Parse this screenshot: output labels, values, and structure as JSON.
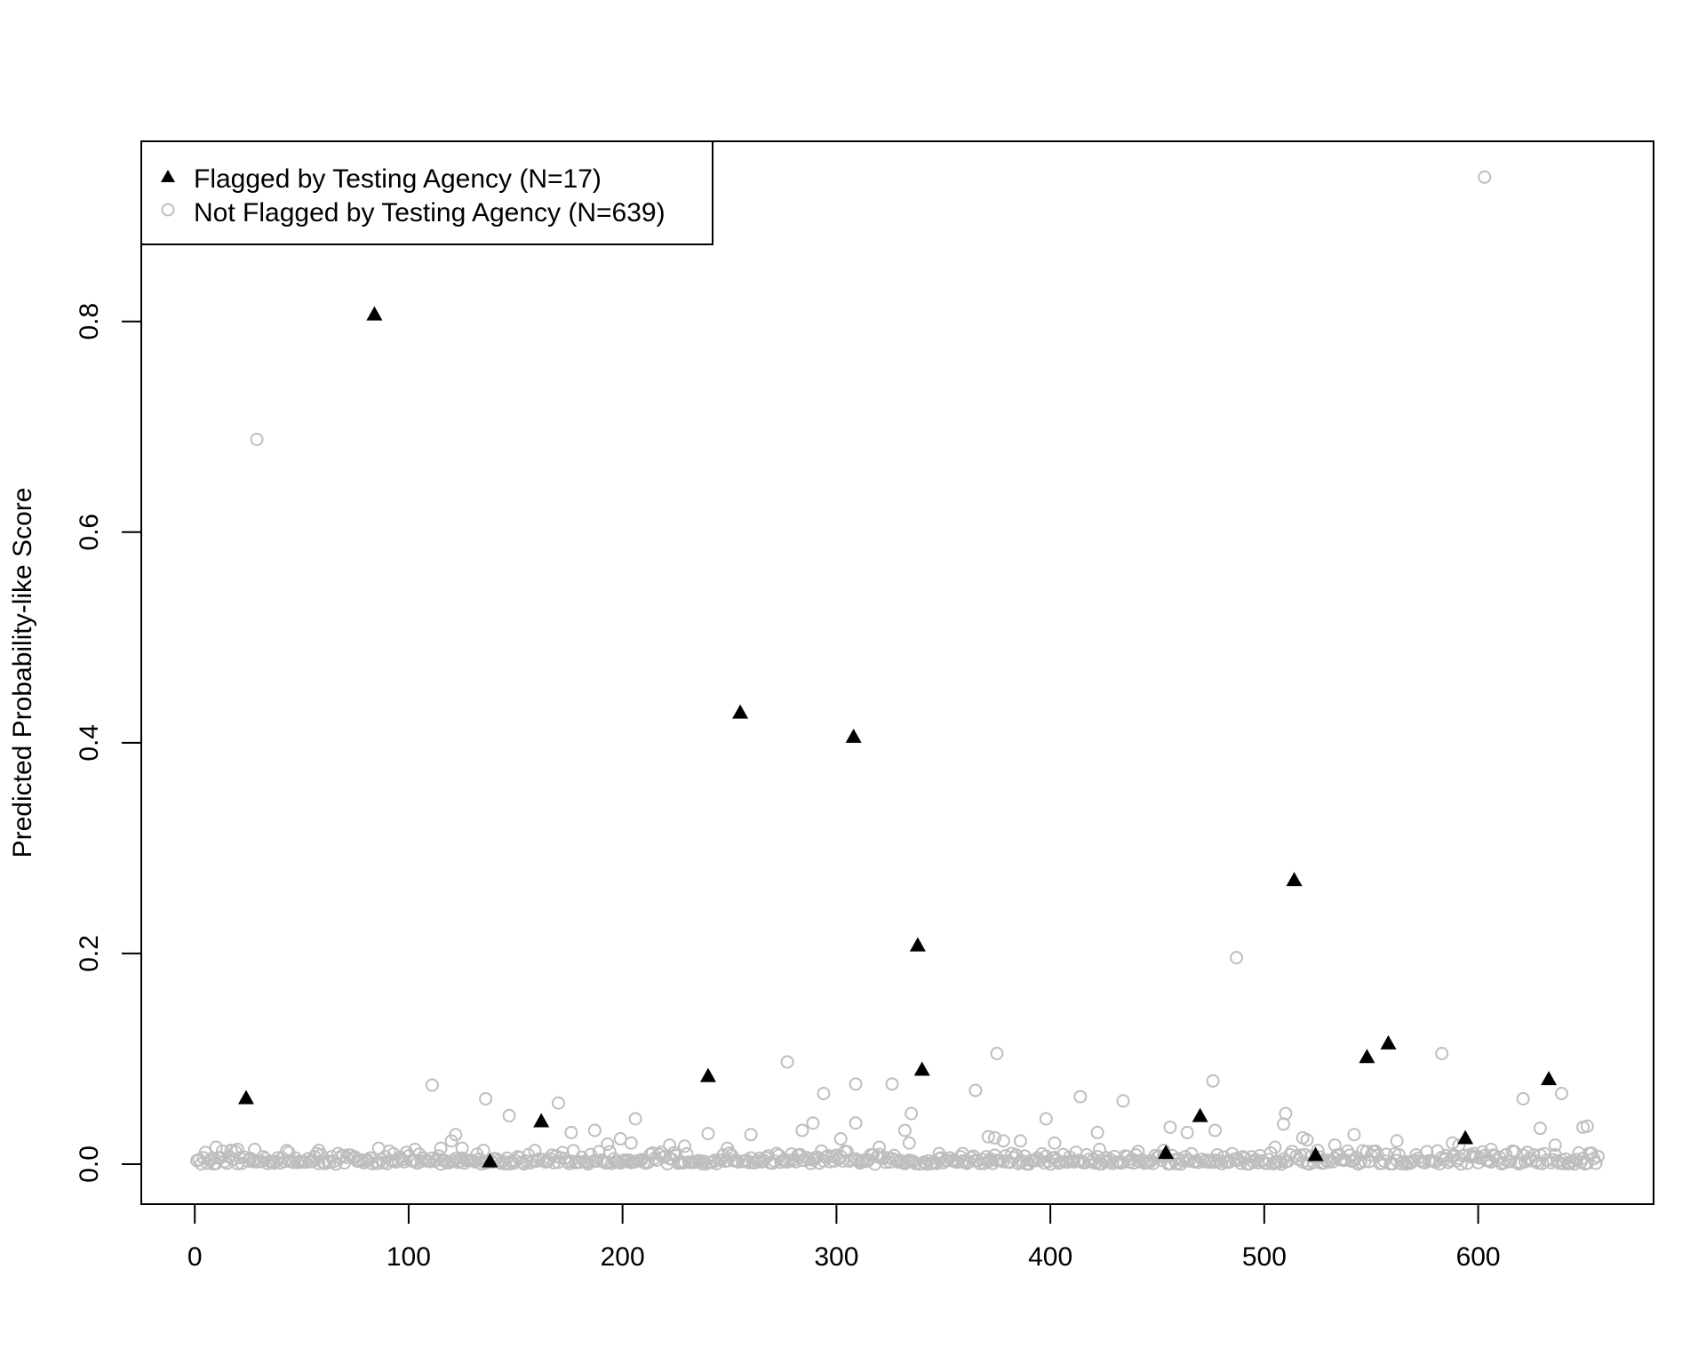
{
  "chart_data": {
    "type": "scatter",
    "title": "",
    "xlabel": "",
    "ylabel": "Predicted Probability-like Score",
    "xlim": [
      -25,
      682
    ],
    "ylim": [
      -0.038,
      0.971
    ],
    "x_ticks": [
      0,
      100,
      200,
      300,
      400,
      500,
      600
    ],
    "y_ticks": [
      0.0,
      0.2,
      0.4,
      0.6,
      0.8
    ],
    "grid": false,
    "legend_position": "top-left",
    "series": [
      {
        "name": "Flagged by Testing Agency (N=17)",
        "marker": "filled-triangle",
        "color": "#000000",
        "points": [
          [
            24,
            0.062
          ],
          [
            84,
            0.806
          ],
          [
            138,
            0.002
          ],
          [
            162,
            0.04
          ],
          [
            240,
            0.083
          ],
          [
            255,
            0.428
          ],
          [
            308,
            0.405
          ],
          [
            338,
            0.207
          ],
          [
            340,
            0.089
          ],
          [
            454,
            0.01
          ],
          [
            470,
            0.045
          ],
          [
            514,
            0.269
          ],
          [
            524,
            0.008
          ],
          [
            548,
            0.101
          ],
          [
            558,
            0.114
          ],
          [
            594,
            0.024
          ],
          [
            633,
            0.08
          ]
        ]
      },
      {
        "name": "Not Flagged by Testing Agency (N=639)",
        "marker": "open-circle",
        "color": "#bebebe",
        "points": [
          [
            29,
            0.688
          ],
          [
            603,
            0.937
          ],
          [
            487,
            0.196
          ],
          [
            375,
            0.105
          ],
          [
            277,
            0.097
          ],
          [
            583,
            0.105
          ],
          [
            111,
            0.075
          ],
          [
            309,
            0.076
          ],
          [
            326,
            0.076
          ],
          [
            365,
            0.07
          ],
          [
            476,
            0.079
          ],
          [
            294,
            0.067
          ],
          [
            414,
            0.064
          ],
          [
            434,
            0.06
          ],
          [
            621,
            0.062
          ],
          [
            639,
            0.067
          ],
          [
            136,
            0.062
          ],
          [
            170,
            0.058
          ],
          [
            147,
            0.046
          ],
          [
            335,
            0.048
          ],
          [
            510,
            0.048
          ],
          [
            456,
            0.035
          ],
          [
            464,
            0.03
          ],
          [
            477,
            0.032
          ],
          [
            371,
            0.026
          ],
          [
            374,
            0.025
          ],
          [
            398,
            0.043
          ],
          [
            240,
            0.029
          ],
          [
            260,
            0.028
          ],
          [
            284,
            0.032
          ],
          [
            289,
            0.039
          ],
          [
            309,
            0.039
          ],
          [
            332,
            0.032
          ],
          [
            334,
            0.02
          ],
          [
            176,
            0.03
          ],
          [
            187,
            0.032
          ],
          [
            199,
            0.024
          ],
          [
            204,
            0.02
          ],
          [
            206,
            0.043
          ],
          [
            122,
            0.028
          ],
          [
            120,
            0.022
          ],
          [
            125,
            0.015
          ],
          [
            509,
            0.038
          ],
          [
            518,
            0.025
          ],
          [
            520,
            0.023
          ],
          [
            542,
            0.028
          ],
          [
            588,
            0.02
          ],
          [
            591,
            0.018
          ],
          [
            629,
            0.034
          ],
          [
            636,
            0.018
          ],
          [
            649,
            0.035
          ],
          [
            651,
            0.036
          ],
          [
            562,
            0.022
          ],
          [
            402,
            0.02
          ],
          [
            422,
            0.03
          ],
          [
            378,
            0.022
          ],
          [
            386,
            0.022
          ],
          [
            302,
            0.024
          ],
          [
            320,
            0.016
          ],
          [
            86,
            0.015
          ],
          [
            58,
            0.013
          ],
          [
            10,
            0.016
          ],
          [
            17,
            0.013
          ],
          [
            20,
            0.014
          ],
          [
            28,
            0.014
          ],
          [
            44,
            0.011
          ],
          [
            103,
            0.014
          ],
          [
            115,
            0.015
          ],
          [
            135,
            0.013
          ],
          [
            229,
            0.017
          ],
          [
            249,
            0.015
          ],
          [
            222,
            0.018
          ],
          [
            193,
            0.019
          ],
          [
            348,
            0.01
          ],
          [
            359,
            0.01
          ],
          [
            423,
            0.014
          ],
          [
            441,
            0.012
          ],
          [
            453,
            0.013
          ],
          [
            548,
            0.012
          ],
          [
            505,
            0.016
          ],
          [
            533,
            0.018
          ],
          [
            598,
            0.01
          ],
          [
            606,
            0.014
          ]
        ]
      }
    ]
  }
}
